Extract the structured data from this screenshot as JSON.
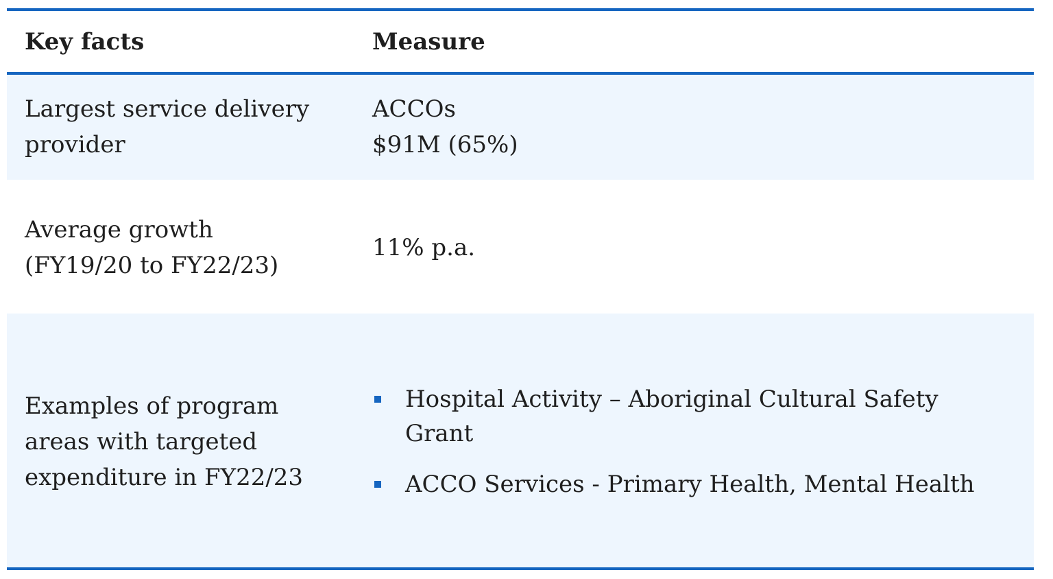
{
  "colors": {
    "rule": "#1565c0",
    "shaded_row": "#eef6fe",
    "bullet": "#1565c0"
  },
  "header": {
    "col1": "Key facts",
    "col2": "Measure"
  },
  "rows": [
    {
      "fact_lines": [
        "Largest service delivery",
        "provider"
      ],
      "measure_lines": [
        "ACCOs",
        "$91M (65%)"
      ]
    },
    {
      "fact_lines": [
        "Average growth",
        "(FY19/20 to FY22/23)"
      ],
      "measure_lines": [
        "11% p.a."
      ]
    },
    {
      "fact_lines": [
        "Examples of program",
        "areas with targeted",
        "expenditure in FY22/23"
      ],
      "bullets": [
        {
          "lines": [
            "Hospital Activity – Aboriginal Cultural Safety",
            "Grant"
          ]
        },
        {
          "lines": [
            "ACCO Services - Primary Health, Mental Health"
          ]
        }
      ]
    }
  ]
}
